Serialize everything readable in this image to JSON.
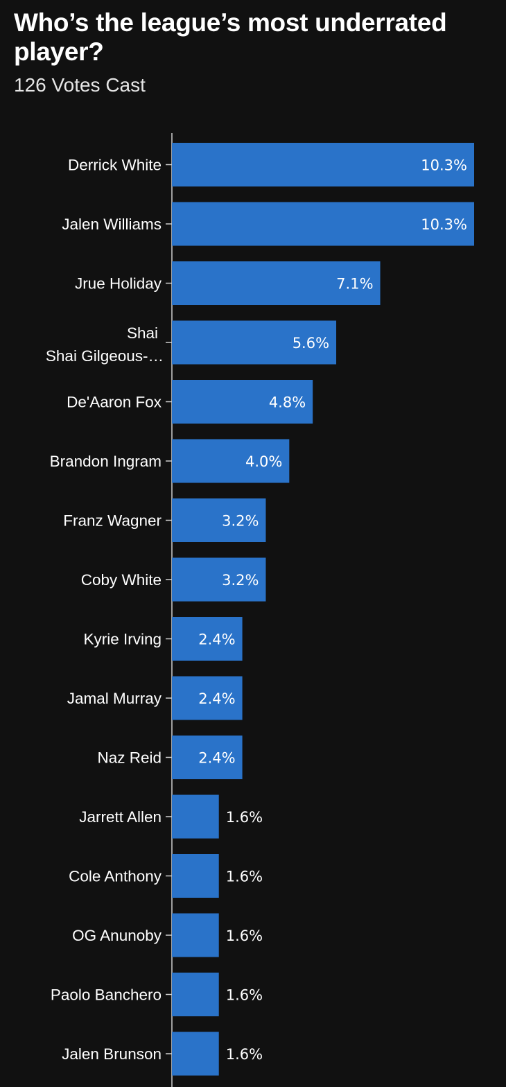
{
  "title": "Who’s the league’s most underrated player?",
  "subtitle": "126 Votes Cast",
  "chart_data": {
    "type": "bar",
    "orientation": "horizontal",
    "categories": [
      "Derrick White",
      "Jalen Williams",
      "Jrue Holiday",
      "Shai Gilgeous-…",
      "De'Aaron Fox",
      "Brandon Ingram",
      "Franz Wagner",
      "Coby White",
      "Kyrie Irving",
      "Jamal Murray",
      "Naz Reid",
      "Jarrett Allen",
      "Cole Anthony",
      "OG Anunoby",
      "Paolo Banchero",
      "Jalen Brunson"
    ],
    "category_label_prefix": {
      "3": "Shai"
    },
    "values": [
      10.3,
      10.3,
      7.1,
      5.6,
      4.8,
      4.0,
      3.2,
      3.2,
      2.4,
      2.4,
      2.4,
      1.6,
      1.6,
      1.6,
      1.6,
      1.6
    ],
    "value_labels": [
      "10.3%",
      "10.3%",
      "7.1%",
      "5.6%",
      "4.8%",
      "4.0%",
      "3.2%",
      "3.2%",
      "2.4%",
      "2.4%",
      "2.4%",
      "1.6%",
      "1.6%",
      "1.6%",
      "1.6%",
      "1.6%"
    ],
    "xlim": [
      0,
      10.3
    ],
    "grid": false,
    "bar_color": "#2a73c9"
  },
  "colors": {
    "background": "#111111",
    "bar": "#2a73c9",
    "text": "#ffffff",
    "axis": "#cfcfcf"
  }
}
